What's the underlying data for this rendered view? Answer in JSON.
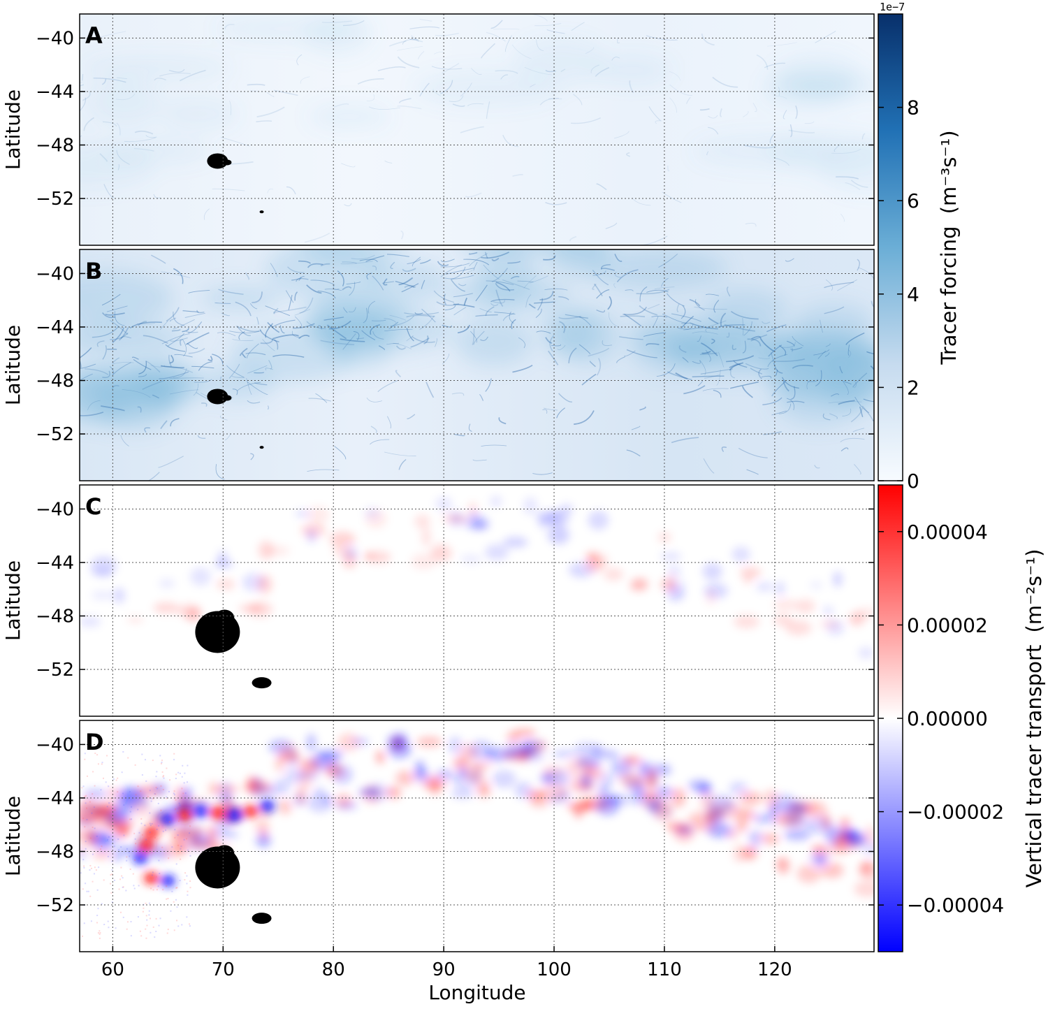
{
  "chart_data": {
    "type": "heatmap",
    "xlabel": "Longitude",
    "ylabel": "Latitude",
    "xlim": [
      57,
      129
    ],
    "ylim": [
      -55.5,
      -38.2
    ],
    "xticks": [
      60,
      70,
      80,
      90,
      100,
      110,
      120
    ],
    "yticks": [
      -40,
      -44,
      -48,
      -52
    ],
    "grid": true,
    "panels": [
      {
        "label": "A",
        "colormap": "Blues",
        "colorbar": "forcing"
      },
      {
        "label": "B",
        "colormap": "Blues",
        "colorbar": "forcing"
      },
      {
        "label": "C",
        "colormap": "bwr",
        "colorbar": "transport"
      },
      {
        "label": "D",
        "colormap": "bwr",
        "colorbar": "transport"
      }
    ],
    "colorbars": [
      {
        "id": "forcing",
        "colormap": "Blues",
        "range": [
          0,
          1e-06
        ],
        "ticks": [
          0,
          2e-07,
          4e-07,
          6e-07,
          8e-07
        ],
        "tick_labels": [
          "0",
          "2",
          "4",
          "6",
          "8"
        ],
        "offset_text": "1e−7",
        "label": "Tracer forcing",
        "unit": "(m⁻³s⁻¹)"
      },
      {
        "id": "transport",
        "colormap": "bwr",
        "range": [
          -5e-05,
          5e-05
        ],
        "ticks": [
          4e-05,
          2e-05,
          0,
          -2e-05,
          -4e-05
        ],
        "tick_labels": [
          "0.00004",
          "0.00002",
          "0.00000",
          "−0.00002",
          "−0.00004"
        ],
        "label": "Vertical tracer transport",
        "unit": "(m⁻²s⁻¹)"
      }
    ],
    "land_masks": [
      {
        "name": "Kerguelen",
        "lon": 69.5,
        "lat": -49.2
      },
      {
        "name": "Heard",
        "lon": 73.5,
        "lat": -53.0
      }
    ]
  },
  "colors": {
    "land": "#000000",
    "blues_max": "#08306b",
    "bwr_positive": "#ff0000",
    "bwr_negative": "#0000ff",
    "grid": "#555555"
  }
}
